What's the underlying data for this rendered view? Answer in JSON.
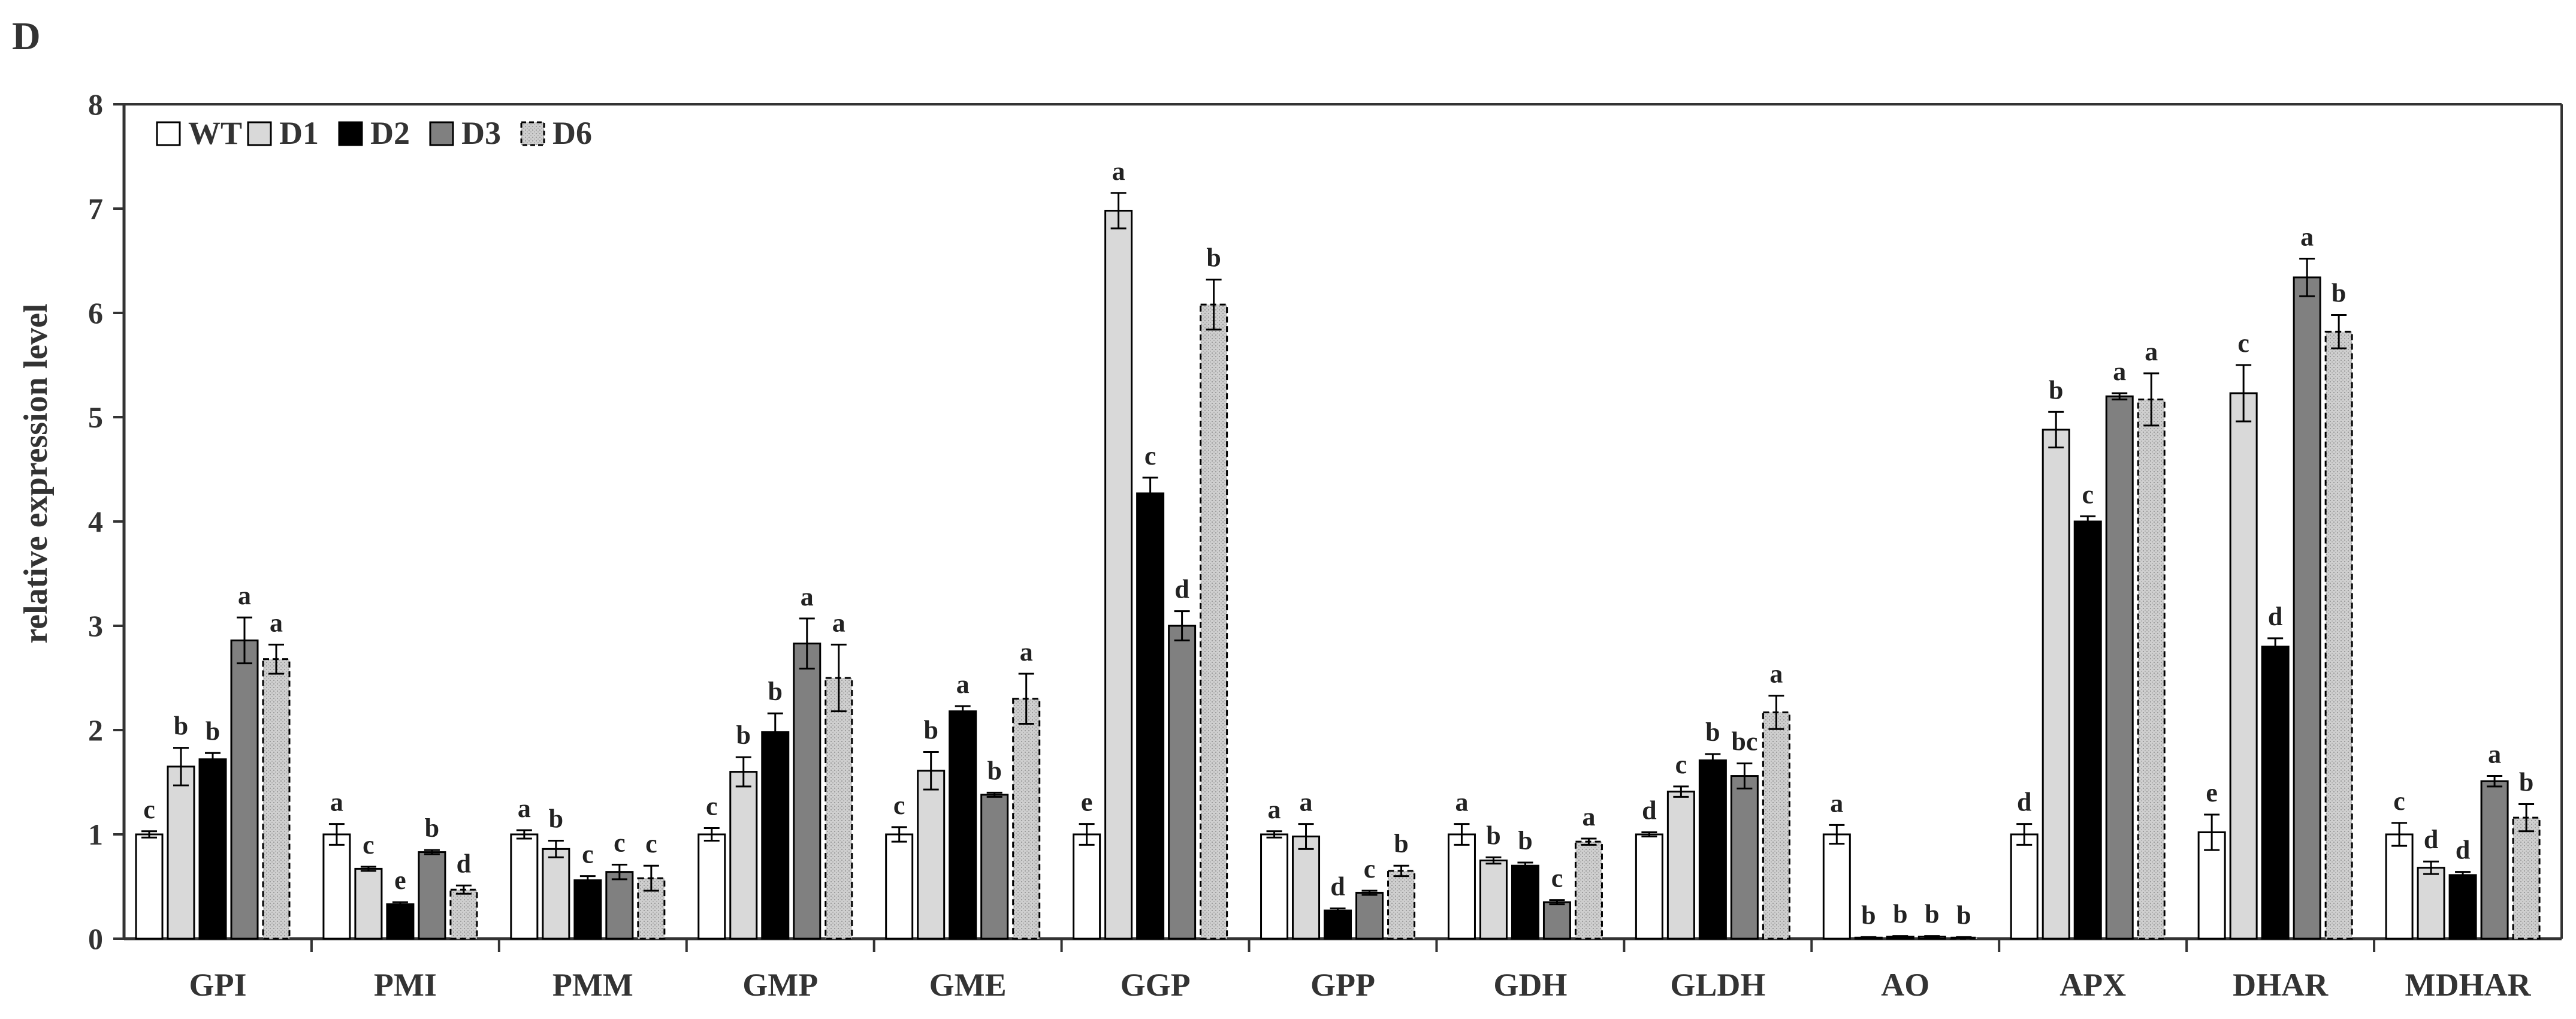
{
  "panel_label": "D",
  "colors": {
    "WT": "#ffffff",
    "D1": "#d9d9d9",
    "D2": "#000000",
    "D3": "#808080",
    "D6": "#c8c8c8",
    "axis": "#333333"
  },
  "chart_data": {
    "type": "bar",
    "title": "",
    "xlabel": "",
    "ylabel": "relative expression level",
    "ylim": [
      0,
      8
    ],
    "yticks": [
      "0",
      "1",
      "2",
      "3",
      "4",
      "5",
      "6",
      "7",
      "8"
    ],
    "legend_position": "top-left",
    "categories": [
      "GPI",
      "PMI",
      "PMM",
      "GMP",
      "GME",
      "GGP",
      "GPP",
      "GDH",
      "GLDH",
      "AO",
      "APX",
      "DHAR",
      "MDHAR"
    ],
    "series": [
      {
        "name": "WT",
        "values": [
          1.0,
          1.0,
          1.0,
          1.0,
          1.0,
          1.0,
          1.0,
          1.0,
          1.0,
          1.0,
          1.0,
          1.02,
          1.0
        ],
        "errors": [
          0.03,
          0.1,
          0.04,
          0.06,
          0.07,
          0.1,
          0.03,
          0.1,
          0.02,
          0.09,
          0.1,
          0.17,
          0.11
        ],
        "letters": [
          "c",
          "a",
          "a",
          "c",
          "c",
          "e",
          "a",
          "a",
          "d",
          "a",
          "d",
          "e",
          "c"
        ]
      },
      {
        "name": "D1",
        "values": [
          1.65,
          0.67,
          0.86,
          1.6,
          1.61,
          6.98,
          0.98,
          0.75,
          1.41,
          0.01,
          4.88,
          5.23,
          0.68
        ],
        "errors": [
          0.18,
          0.02,
          0.08,
          0.14,
          0.18,
          0.17,
          0.12,
          0.03,
          0.05,
          0.005,
          0.17,
          0.27,
          0.06
        ],
        "letters": [
          "b",
          "c",
          "b",
          "b",
          "b",
          "a",
          "a",
          "b",
          "c",
          "b",
          "b",
          "c",
          "d"
        ]
      },
      {
        "name": "D2",
        "values": [
          1.72,
          0.33,
          0.56,
          1.98,
          2.18,
          4.27,
          0.27,
          0.7,
          1.71,
          0.02,
          4.0,
          2.8,
          0.61
        ],
        "errors": [
          0.06,
          0.02,
          0.04,
          0.18,
          0.05,
          0.15,
          0.02,
          0.03,
          0.06,
          0.005,
          0.05,
          0.08,
          0.03
        ],
        "letters": [
          "b",
          "e",
          "c",
          "b",
          "a",
          "c",
          "d",
          "b",
          "b",
          "b",
          "c",
          "d",
          "d"
        ]
      },
      {
        "name": "D3",
        "values": [
          2.86,
          0.83,
          0.64,
          2.83,
          1.38,
          3.0,
          0.44,
          0.35,
          1.56,
          0.02,
          5.2,
          6.34,
          1.51
        ],
        "errors": [
          0.22,
          0.02,
          0.07,
          0.24,
          0.02,
          0.14,
          0.02,
          0.02,
          0.12,
          0.005,
          0.03,
          0.18,
          0.05
        ],
        "letters": [
          "a",
          "b",
          "c",
          "a",
          "b",
          "d",
          "c",
          "c",
          "bc",
          "b",
          "a",
          "a",
          "a"
        ]
      },
      {
        "name": "D6",
        "values": [
          2.68,
          0.47,
          0.58,
          2.5,
          2.3,
          6.08,
          0.65,
          0.93,
          2.17,
          0.01,
          5.17,
          5.82,
          1.16
        ],
        "errors": [
          0.14,
          0.04,
          0.12,
          0.32,
          0.24,
          0.24,
          0.05,
          0.03,
          0.16,
          0.005,
          0.25,
          0.16,
          0.13
        ],
        "letters": [
          "a",
          "d",
          "c",
          "a",
          "a",
          "b",
          "b",
          "a",
          "a",
          "b",
          "a",
          "b",
          "b"
        ]
      }
    ]
  }
}
